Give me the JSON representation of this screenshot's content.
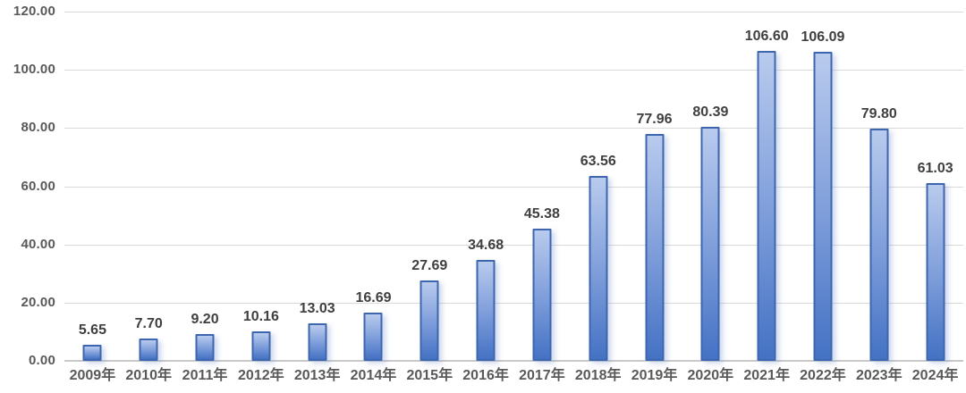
{
  "chart_data": {
    "type": "bar",
    "title": "",
    "xlabel": "",
    "ylabel": "",
    "categories": [
      "2009年",
      "2010年",
      "2011年",
      "2012年",
      "2013年",
      "2014年",
      "2015年",
      "2016年",
      "2017年",
      "2018年",
      "2019年",
      "2020年",
      "2021年",
      "2022年",
      "2023年",
      "2024年"
    ],
    "values": [
      5.65,
      7.7,
      9.2,
      10.16,
      13.03,
      16.69,
      27.69,
      34.68,
      45.38,
      63.56,
      77.96,
      80.39,
      106.6,
      106.09,
      79.8,
      61.03
    ],
    "data_labels": [
      "5.65",
      "7.70",
      "9.20",
      "10.16",
      "13.03",
      "16.69",
      "27.69",
      "34.68",
      "45.38",
      "63.56",
      "77.96",
      "80.39",
      "106.60",
      "106.09",
      "79.80",
      "61.03"
    ],
    "ylim": [
      0,
      120
    ],
    "yticks": [
      0,
      20,
      40,
      60,
      80,
      100,
      120
    ],
    "ytick_labels": [
      "0.00",
      "20.00",
      "40.00",
      "60.00",
      "80.00",
      "100.00",
      "120.00"
    ],
    "grid": true,
    "legend": false,
    "data_labels_position": "above-bar"
  },
  "colors": {
    "background": "#ffffff",
    "bar_top": "#b9cbee",
    "bar_mid": "#7b9bd9",
    "bar_bottom": "#4472c4",
    "bar_border": "#3e66ae",
    "gridline": "#d9d9d9",
    "axis_line": "#c9c9c9",
    "tick_text": "#595959",
    "data_label_text": "#3f3f3f"
  }
}
